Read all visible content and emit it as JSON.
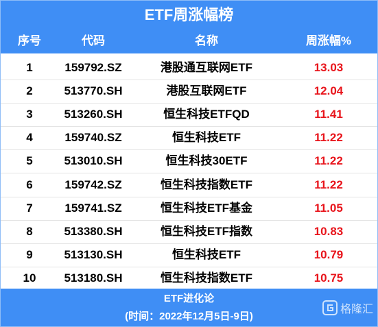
{
  "header": {
    "title": "ETF周涨幅榜"
  },
  "table": {
    "columns": [
      "序号",
      "代码",
      "名称",
      "周涨幅%"
    ],
    "rows": [
      [
        1,
        "159792.SZ",
        "港股通互联网ETF",
        "13.03"
      ],
      [
        2,
        "513770.SH",
        "港股互联网ETF",
        "12.04"
      ],
      [
        3,
        "513260.SH",
        "恒生科技ETFQD",
        "11.41"
      ],
      [
        4,
        "159740.SZ",
        "恒生科技ETF",
        "11.22"
      ],
      [
        5,
        "513010.SH",
        "恒生科技30ETF",
        "11.22"
      ],
      [
        6,
        "159742.SZ",
        "恒生科技指数ETF",
        "11.22"
      ],
      [
        7,
        "159741.SZ",
        "恒生科技ETF基金",
        "11.05"
      ],
      [
        8,
        "513380.SH",
        "恒生科技ETF指数",
        "10.83"
      ],
      [
        9,
        "513130.SH",
        "恒生科技ETF",
        "10.79"
      ],
      [
        10,
        "513180.SH",
        "恒生科技指数ETF",
        "10.75"
      ]
    ]
  },
  "footer": {
    "lines": [
      "ETF进化论",
      "(时间：2022年12月5日-9日)"
    ],
    "watermark": "格隆汇"
  }
}
